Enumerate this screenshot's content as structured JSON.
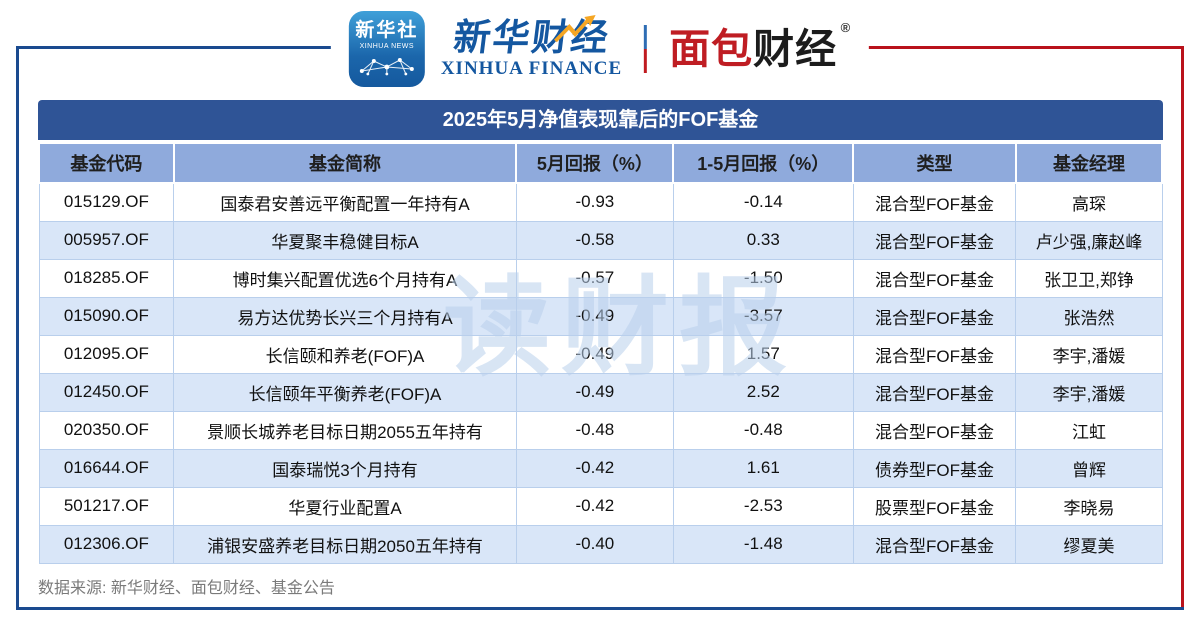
{
  "brand": {
    "xinhua_app": {
      "line1": "新华社",
      "line2": "XINHUA NEWS"
    },
    "xinhua_finance": {
      "cn": "新华财经",
      "en": "XINHUA FINANCE"
    },
    "bread_finance": {
      "cn_red": "面包",
      "cn_black": "财经",
      "reg": "®"
    }
  },
  "table": {
    "title": "2025年5月净值表现靠后的FOF基金",
    "columns": [
      "基金代码",
      "基金简称",
      "5月回报（%）",
      "1-5月回报（%）",
      "类型",
      "基金经理"
    ],
    "rows": [
      [
        "015129.OF",
        "国泰君安善远平衡配置一年持有A",
        "-0.93",
        "-0.14",
        "混合型FOF基金",
        "高琛"
      ],
      [
        "005957.OF",
        "华夏聚丰稳健目标A",
        "-0.58",
        "0.33",
        "混合型FOF基金",
        "卢少强,廉赵峰"
      ],
      [
        "018285.OF",
        "博时集兴配置优选6个月持有A",
        "-0.57",
        "-1.50",
        "混合型FOF基金",
        "张卫卫,郑铮"
      ],
      [
        "015090.OF",
        "易方达优势长兴三个月持有A",
        "-0.49",
        "-3.57",
        "混合型FOF基金",
        "张浩然"
      ],
      [
        "012095.OF",
        "长信颐和养老(FOF)A",
        "-0.49",
        "1.57",
        "混合型FOF基金",
        "李宇,潘媛"
      ],
      [
        "012450.OF",
        "长信颐年平衡养老(FOF)A",
        "-0.49",
        "2.52",
        "混合型FOF基金",
        "李宇,潘媛"
      ],
      [
        "020350.OF",
        "景顺长城养老目标日期2055五年持有",
        "-0.48",
        "-0.48",
        "混合型FOF基金",
        "江虹"
      ],
      [
        "016644.OF",
        "国泰瑞悦3个月持有",
        "-0.42",
        "1.61",
        "债券型FOF基金",
        "曾辉"
      ],
      [
        "501217.OF",
        "华夏行业配置A",
        "-0.42",
        "-2.53",
        "股票型FOF基金",
        "李晓易"
      ],
      [
        "012306.OF",
        "浦银安盛养老目标日期2050五年持有",
        "-0.40",
        "-1.48",
        "混合型FOF基金",
        "缪夏美"
      ]
    ]
  },
  "chart_data": {
    "type": "table",
    "title": "2025年5月净值表现靠后的FOF基金",
    "columns": [
      "基金代码",
      "基金简称",
      "5月回报（%）",
      "1-5月回报（%）",
      "类型",
      "基金经理"
    ],
    "rows": [
      [
        "015129.OF",
        "国泰君安善远平衡配置一年持有A",
        -0.93,
        -0.14,
        "混合型FOF基金",
        "高琛"
      ],
      [
        "005957.OF",
        "华夏聚丰稳健目标A",
        -0.58,
        0.33,
        "混合型FOF基金",
        "卢少强,廉赵峰"
      ],
      [
        "018285.OF",
        "博时集兴配置优选6个月持有A",
        -0.57,
        -1.5,
        "混合型FOF基金",
        "张卫卫,郑铮"
      ],
      [
        "015090.OF",
        "易方达优势长兴三个月持有A",
        -0.49,
        -3.57,
        "混合型FOF基金",
        "张浩然"
      ],
      [
        "012095.OF",
        "长信颐和养老(FOF)A",
        -0.49,
        1.57,
        "混合型FOF基金",
        "李宇,潘媛"
      ],
      [
        "012450.OF",
        "长信颐年平衡养老(FOF)A",
        -0.49,
        2.52,
        "混合型FOF基金",
        "李宇,潘媛"
      ],
      [
        "020350.OF",
        "景顺长城养老目标日期2055五年持有",
        -0.48,
        -0.48,
        "混合型FOF基金",
        "江虹"
      ],
      [
        "016644.OF",
        "国泰瑞悦3个月持有",
        -0.42,
        1.61,
        "债券型FOF基金",
        "曾辉"
      ],
      [
        "501217.OF",
        "华夏行业配置A",
        -0.42,
        -2.53,
        "股票型FOF基金",
        "李晓易"
      ],
      [
        "012306.OF",
        "浦银安盛养老目标日期2050五年持有",
        -0.4,
        -1.48,
        "混合型FOF基金",
        "缪夏美"
      ]
    ]
  },
  "watermark": "读财报",
  "footer": {
    "source": "数据来源: 新华财经、面包财经、基金公告"
  },
  "colors": {
    "frame_blue": "#1a4a8f",
    "frame_red": "#b9121b",
    "title_bg": "#2f5496",
    "header_bg": "#8faadc",
    "row_alt_bg": "#d9e6f8",
    "cell_border": "#b9cfec",
    "watermark": "#b9d0ec",
    "brand_blue": "#1457a0",
    "brand_red": "#bf1d23",
    "footer_text": "#7a7a7a"
  }
}
